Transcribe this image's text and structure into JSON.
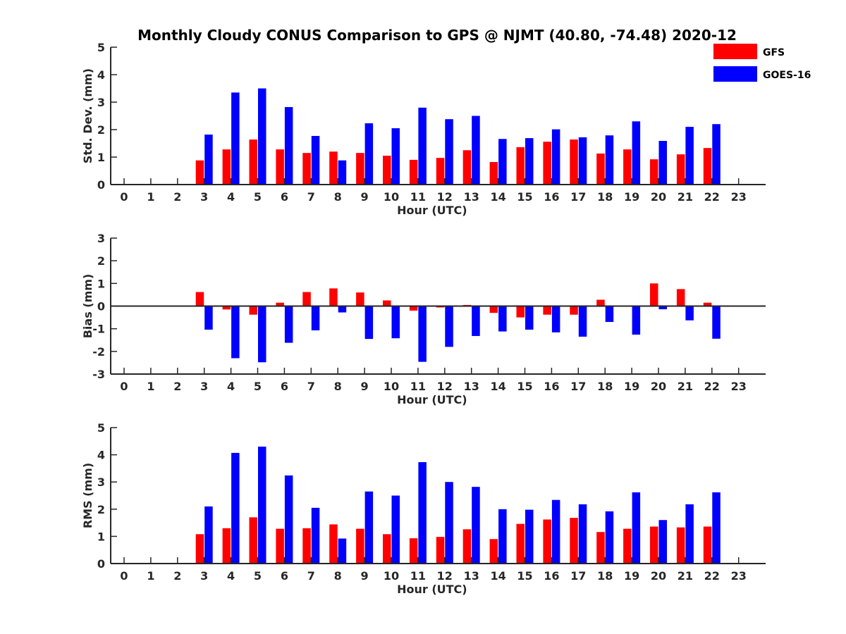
{
  "title": "Monthly Cloudy CONUS Comparison to GPS @ NJMT (40.80, -74.48) 2020-12",
  "legend": [
    {
      "name": "GFS",
      "color": "#ff0000"
    },
    {
      "name": "GOES-16",
      "color": "#0000ff"
    }
  ],
  "chart_data": [
    {
      "type": "bar",
      "xlabel": "Hour (UTC)",
      "ylabel": "Std. Dev. (mm)",
      "x": [
        0,
        1,
        2,
        3,
        4,
        5,
        6,
        7,
        8,
        9,
        10,
        11,
        12,
        13,
        14,
        15,
        16,
        17,
        18,
        19,
        20,
        21,
        22,
        23
      ],
      "ylim": [
        0,
        5
      ],
      "yticks": [
        0,
        1,
        2,
        3,
        4,
        5
      ],
      "series": [
        {
          "name": "GFS",
          "color": "#ff0000",
          "values": [
            null,
            null,
            null,
            0.88,
            1.28,
            1.64,
            1.28,
            1.15,
            1.2,
            1.15,
            1.05,
            0.9,
            0.97,
            1.25,
            0.82,
            1.36,
            1.56,
            1.64,
            1.13,
            1.28,
            0.92,
            1.1,
            1.33,
            null
          ]
        },
        {
          "name": "GOES-16",
          "color": "#0000ff",
          "values": [
            null,
            null,
            null,
            1.82,
            3.35,
            3.5,
            2.82,
            1.77,
            0.88,
            2.23,
            2.05,
            2.8,
            2.38,
            2.5,
            1.66,
            1.69,
            2.01,
            1.72,
            1.79,
            2.3,
            1.59,
            2.1,
            2.2,
            null
          ]
        }
      ]
    },
    {
      "type": "bar",
      "xlabel": "Hour (UTC)",
      "ylabel": "Bias (mm)",
      "x": [
        0,
        1,
        2,
        3,
        4,
        5,
        6,
        7,
        8,
        9,
        10,
        11,
        12,
        13,
        14,
        15,
        16,
        17,
        18,
        19,
        20,
        21,
        22,
        23
      ],
      "ylim": [
        -3,
        3
      ],
      "yticks": [
        -3,
        -2,
        -1,
        0,
        1,
        2,
        3
      ],
      "series": [
        {
          "name": "GFS",
          "color": "#ff0000",
          "values": [
            null,
            null,
            null,
            0.62,
            -0.15,
            -0.38,
            0.15,
            0.62,
            0.78,
            0.6,
            0.25,
            -0.2,
            -0.06,
            0.05,
            -0.3,
            -0.5,
            -0.38,
            -0.38,
            0.28,
            0.02,
            1.0,
            0.75,
            0.15,
            null
          ]
        },
        {
          "name": "GOES-16",
          "color": "#0000ff",
          "values": [
            null,
            null,
            null,
            -1.04,
            -2.3,
            -2.48,
            -1.62,
            -1.07,
            -0.28,
            -1.45,
            -1.42,
            -2.46,
            -1.8,
            -1.32,
            -1.12,
            -1.04,
            -1.16,
            -1.35,
            -0.7,
            -1.26,
            -0.14,
            -0.63,
            -1.44,
            null
          ]
        }
      ]
    },
    {
      "type": "bar",
      "xlabel": "Hour (UTC)",
      "ylabel": "RMS (mm)",
      "x": [
        0,
        1,
        2,
        3,
        4,
        5,
        6,
        7,
        8,
        9,
        10,
        11,
        12,
        13,
        14,
        15,
        16,
        17,
        18,
        19,
        20,
        21,
        22,
        23
      ],
      "ylim": [
        0,
        5
      ],
      "yticks": [
        0,
        1,
        2,
        3,
        4,
        5
      ],
      "series": [
        {
          "name": "GFS",
          "color": "#ff0000",
          "values": [
            null,
            null,
            null,
            1.08,
            1.3,
            1.7,
            1.28,
            1.3,
            1.44,
            1.28,
            1.08,
            0.93,
            0.98,
            1.26,
            0.9,
            1.46,
            1.62,
            1.68,
            1.16,
            1.28,
            1.36,
            1.33,
            1.36,
            null
          ]
        },
        {
          "name": "GOES-16",
          "color": "#0000ff",
          "values": [
            null,
            null,
            null,
            2.1,
            4.07,
            4.3,
            3.24,
            2.05,
            0.92,
            2.65,
            2.5,
            3.73,
            3.0,
            2.82,
            2.0,
            1.98,
            2.34,
            2.18,
            1.92,
            2.62,
            1.6,
            2.18,
            2.62,
            null
          ]
        }
      ]
    }
  ]
}
